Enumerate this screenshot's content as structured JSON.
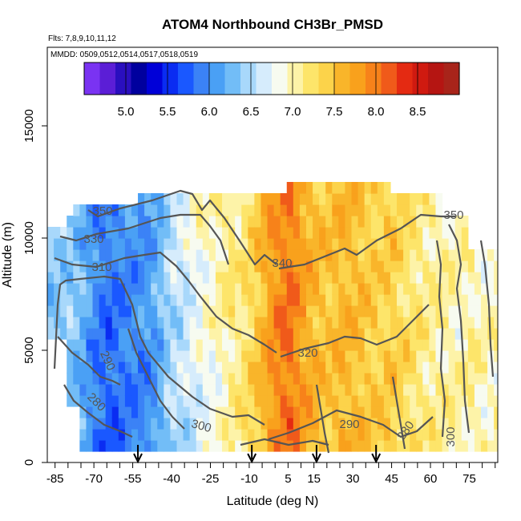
{
  "chart_data": {
    "type": "heatmap",
    "title": "ATOM4 Northbound CH3Br_PMSD",
    "flights_note": "Flts: 7,8,9,10,11,12",
    "dates_note": "MMDD: 0509,0512,0514,0517,0518,0519",
    "xlabel": "Latitude (deg N)",
    "ylabel": "Altitude (m)",
    "xlim": [
      -88,
      86
    ],
    "ylim": [
      0,
      18500
    ],
    "x_ticks": [
      "-85",
      "-70",
      "-55",
      "-40",
      "-25",
      "-10",
      "5",
      "15",
      "30",
      "45",
      "60",
      "75"
    ],
    "y_ticks": [
      "0",
      "5000",
      "10000",
      "15000"
    ],
    "colorbar": {
      "range": [
        4.5,
        9.0
      ],
      "tick_labels": [
        "5.0",
        "5.5",
        "6.0",
        "6.5",
        "7.0",
        "7.5",
        "8.0",
        "8.5"
      ],
      "colors": [
        "#7a33f2",
        "#5b1ed6",
        "#2a0fbf",
        "#00009e",
        "#0000d8",
        "#0a2cf2",
        "#1a58ff",
        "#3b82f6",
        "#4aa0f5",
        "#72bdf7",
        "#a8d8fb",
        "#d6ecfc",
        "#f7fbf0",
        "#fdf3a8",
        "#fde56a",
        "#fcd34a",
        "#f9b52a",
        "#f9a11c",
        "#f7821a",
        "#f05a1a",
        "#e42a12",
        "#d01a10",
        "#b51512",
        "#a8241a"
      ]
    },
    "profile_arrows_lat": [
      -53,
      -9,
      16,
      39
    ],
    "contour_labels": [
      "350",
      "330",
      "310",
      "340",
      "320",
      "290",
      "280",
      "300",
      "290",
      "280",
      "300",
      "350"
    ],
    "surface_profile": {
      "lat": [
        -85,
        -80,
        -75,
        -70,
        -65,
        -60,
        -55,
        -50,
        -45,
        -40,
        -35,
        -30,
        -25,
        -20,
        -15,
        -10,
        -5,
        0,
        5,
        10,
        15,
        20,
        25,
        30,
        35,
        40,
        45,
        50,
        55,
        60,
        65,
        70,
        75,
        80,
        85
      ],
      "CH3Br_pptv": [
        6.3,
        6.2,
        6.1,
        6.0,
        5.8,
        5.7,
        5.8,
        6.0,
        6.2,
        6.4,
        6.5,
        6.7,
        6.8,
        6.9,
        7.1,
        7.3,
        7.6,
        7.9,
        8.1,
        7.8,
        7.6,
        7.5,
        7.6,
        7.6,
        7.5,
        7.4,
        7.5,
        7.3,
        7.2,
        7.1,
        7.1,
        7.0,
        7.1,
        7.0,
        7.0
      ]
    }
  }
}
